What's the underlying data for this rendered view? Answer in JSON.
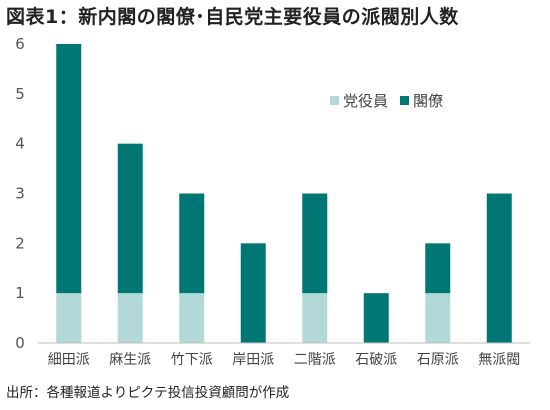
{
  "title": "図表1：新内閣の閣僚･自民党主要役員の派閥別人数",
  "source": "出所：各種報道よりピクテ投信投資顧問が作成",
  "chart_data": {
    "type": "bar",
    "stacked": true,
    "categories": [
      "細田派",
      "麻生派",
      "竹下派",
      "岸田派",
      "二階派",
      "石破派",
      "石原派",
      "無派閥"
    ],
    "series": [
      {
        "name": "党役員",
        "color": "#b3d8d8",
        "values": [
          1,
          1,
          1,
          0,
          1,
          0,
          1,
          0
        ]
      },
      {
        "name": "閣僚",
        "color": "#007775",
        "values": [
          5,
          3,
          2,
          2,
          2,
          1,
          1,
          3
        ]
      }
    ],
    "ylim": [
      0,
      6
    ],
    "yticks": [
      0,
      1,
      2,
      3,
      4,
      5,
      6
    ],
    "grid": false,
    "legend": "top-right",
    "xlabel": "",
    "ylabel": ""
  }
}
